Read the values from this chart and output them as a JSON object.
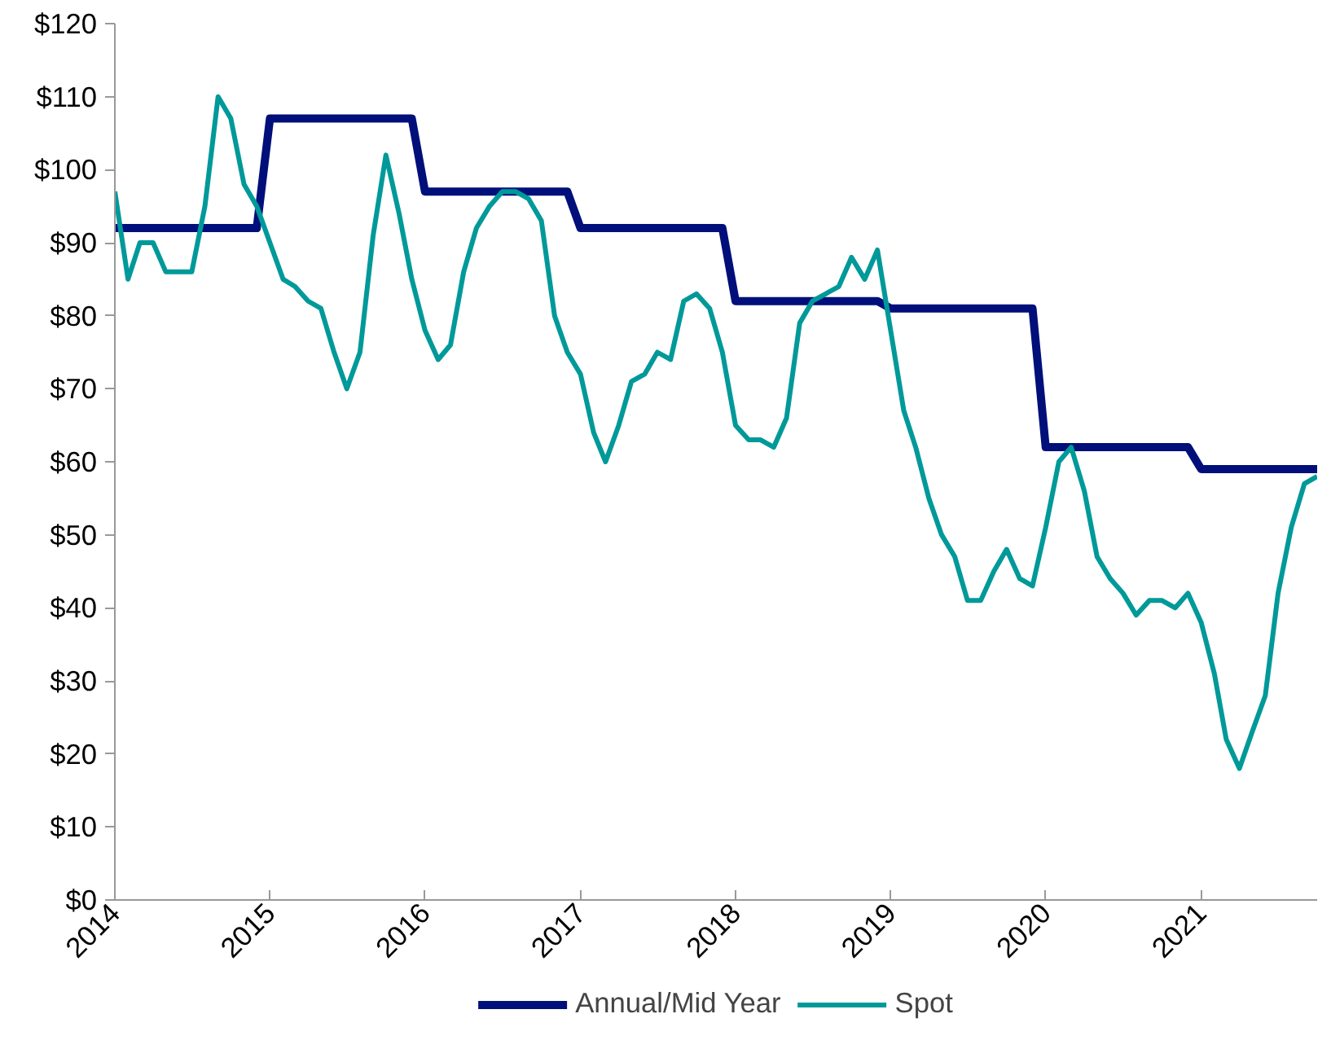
{
  "chart_data": {
    "type": "line",
    "xlim": [
      "2014-01",
      "2021-10"
    ],
    "ylim": [
      0,
      120
    ],
    "xticks": [
      "2014",
      "2015",
      "2016",
      "2017",
      "2018",
      "2019",
      "2020",
      "2021"
    ],
    "yticks": [
      {
        "value": 0,
        "label": "$0"
      },
      {
        "value": 10,
        "label": "$10"
      },
      {
        "value": 20,
        "label": "$20"
      },
      {
        "value": 30,
        "label": "$30"
      },
      {
        "value": 40,
        "label": "$40"
      },
      {
        "value": 50,
        "label": "$50"
      },
      {
        "value": 60,
        "label": "$60"
      },
      {
        "value": 70,
        "label": "$70"
      },
      {
        "value": 80,
        "label": "$80"
      },
      {
        "value": 90,
        "label": "$90"
      },
      {
        "value": 100,
        "label": "$100"
      },
      {
        "value": 110,
        "label": "$110"
      },
      {
        "value": 120,
        "label": "$120"
      }
    ],
    "grid": false,
    "legend": "bottom",
    "marker": "none",
    "line_style": "solid",
    "series": [
      {
        "name": "Annual/Mid Year",
        "color": "#000f7a",
        "x": [
          "2014-01",
          "2014-12",
          "2015-01",
          "2015-12",
          "2016-01",
          "2016-12",
          "2017-01",
          "2017-12",
          "2018-01",
          "2018-12",
          "2019-01",
          "2019-12",
          "2020-01",
          "2020-12",
          "2021-01",
          "2021-10"
        ],
        "values": [
          92,
          92,
          107,
          107,
          97,
          97,
          92,
          92,
          82,
          82,
          81,
          81,
          62,
          62,
          59,
          59
        ]
      },
      {
        "name": "Spot",
        "color": "#009999",
        "x": [
          "2014-01",
          "2014-02",
          "2014-03",
          "2014-04",
          "2014-05",
          "2014-06",
          "2014-07",
          "2014-08",
          "2014-09",
          "2014-10",
          "2014-11",
          "2014-12",
          "2015-01",
          "2015-02",
          "2015-03",
          "2015-04",
          "2015-05",
          "2015-06",
          "2015-07",
          "2015-08",
          "2015-09",
          "2015-10",
          "2015-11",
          "2015-12",
          "2016-01",
          "2016-02",
          "2016-03",
          "2016-04",
          "2016-05",
          "2016-06",
          "2016-07",
          "2016-08",
          "2016-09",
          "2016-10",
          "2016-11",
          "2016-12",
          "2017-01",
          "2017-02",
          "2017-03",
          "2017-04",
          "2017-05",
          "2017-06",
          "2017-07",
          "2017-08",
          "2017-09",
          "2017-10",
          "2017-11",
          "2017-12",
          "2018-01",
          "2018-02",
          "2018-03",
          "2018-04",
          "2018-05",
          "2018-06",
          "2018-07",
          "2018-08",
          "2018-09",
          "2018-10",
          "2018-11",
          "2018-12",
          "2019-01",
          "2019-02",
          "2019-03",
          "2019-04",
          "2019-05",
          "2019-06",
          "2019-07",
          "2019-08",
          "2019-09",
          "2019-10",
          "2019-11",
          "2019-12",
          "2020-01",
          "2020-02",
          "2020-03",
          "2020-04",
          "2020-05",
          "2020-06",
          "2020-07",
          "2020-08",
          "2020-09",
          "2020-10",
          "2020-11",
          "2020-12",
          "2021-01",
          "2021-02",
          "2021-03",
          "2021-04",
          "2021-05",
          "2021-06",
          "2021-07",
          "2021-08",
          "2021-09",
          "2021-10"
        ],
        "values": [
          97,
          85,
          90,
          90,
          86,
          86,
          86,
          95,
          110,
          107,
          98,
          95,
          90,
          85,
          84,
          82,
          81,
          75,
          70,
          75,
          91,
          102,
          94,
          85,
          78,
          74,
          76,
          86,
          92,
          95,
          97,
          97,
          96,
          93,
          80,
          75,
          72,
          64,
          60,
          65,
          71,
          72,
          75,
          74,
          82,
          83,
          81,
          75,
          65,
          63,
          63,
          62,
          66,
          79,
          82,
          83,
          84,
          88,
          85,
          89,
          78,
          67,
          62,
          55,
          50,
          47,
          41,
          41,
          45,
          48,
          44,
          43,
          51,
          60,
          62,
          56,
          47,
          44,
          42,
          39,
          41,
          41,
          40,
          42,
          38,
          31,
          22,
          18,
          23,
          28,
          42,
          51,
          57,
          58
        ]
      }
    ]
  }
}
